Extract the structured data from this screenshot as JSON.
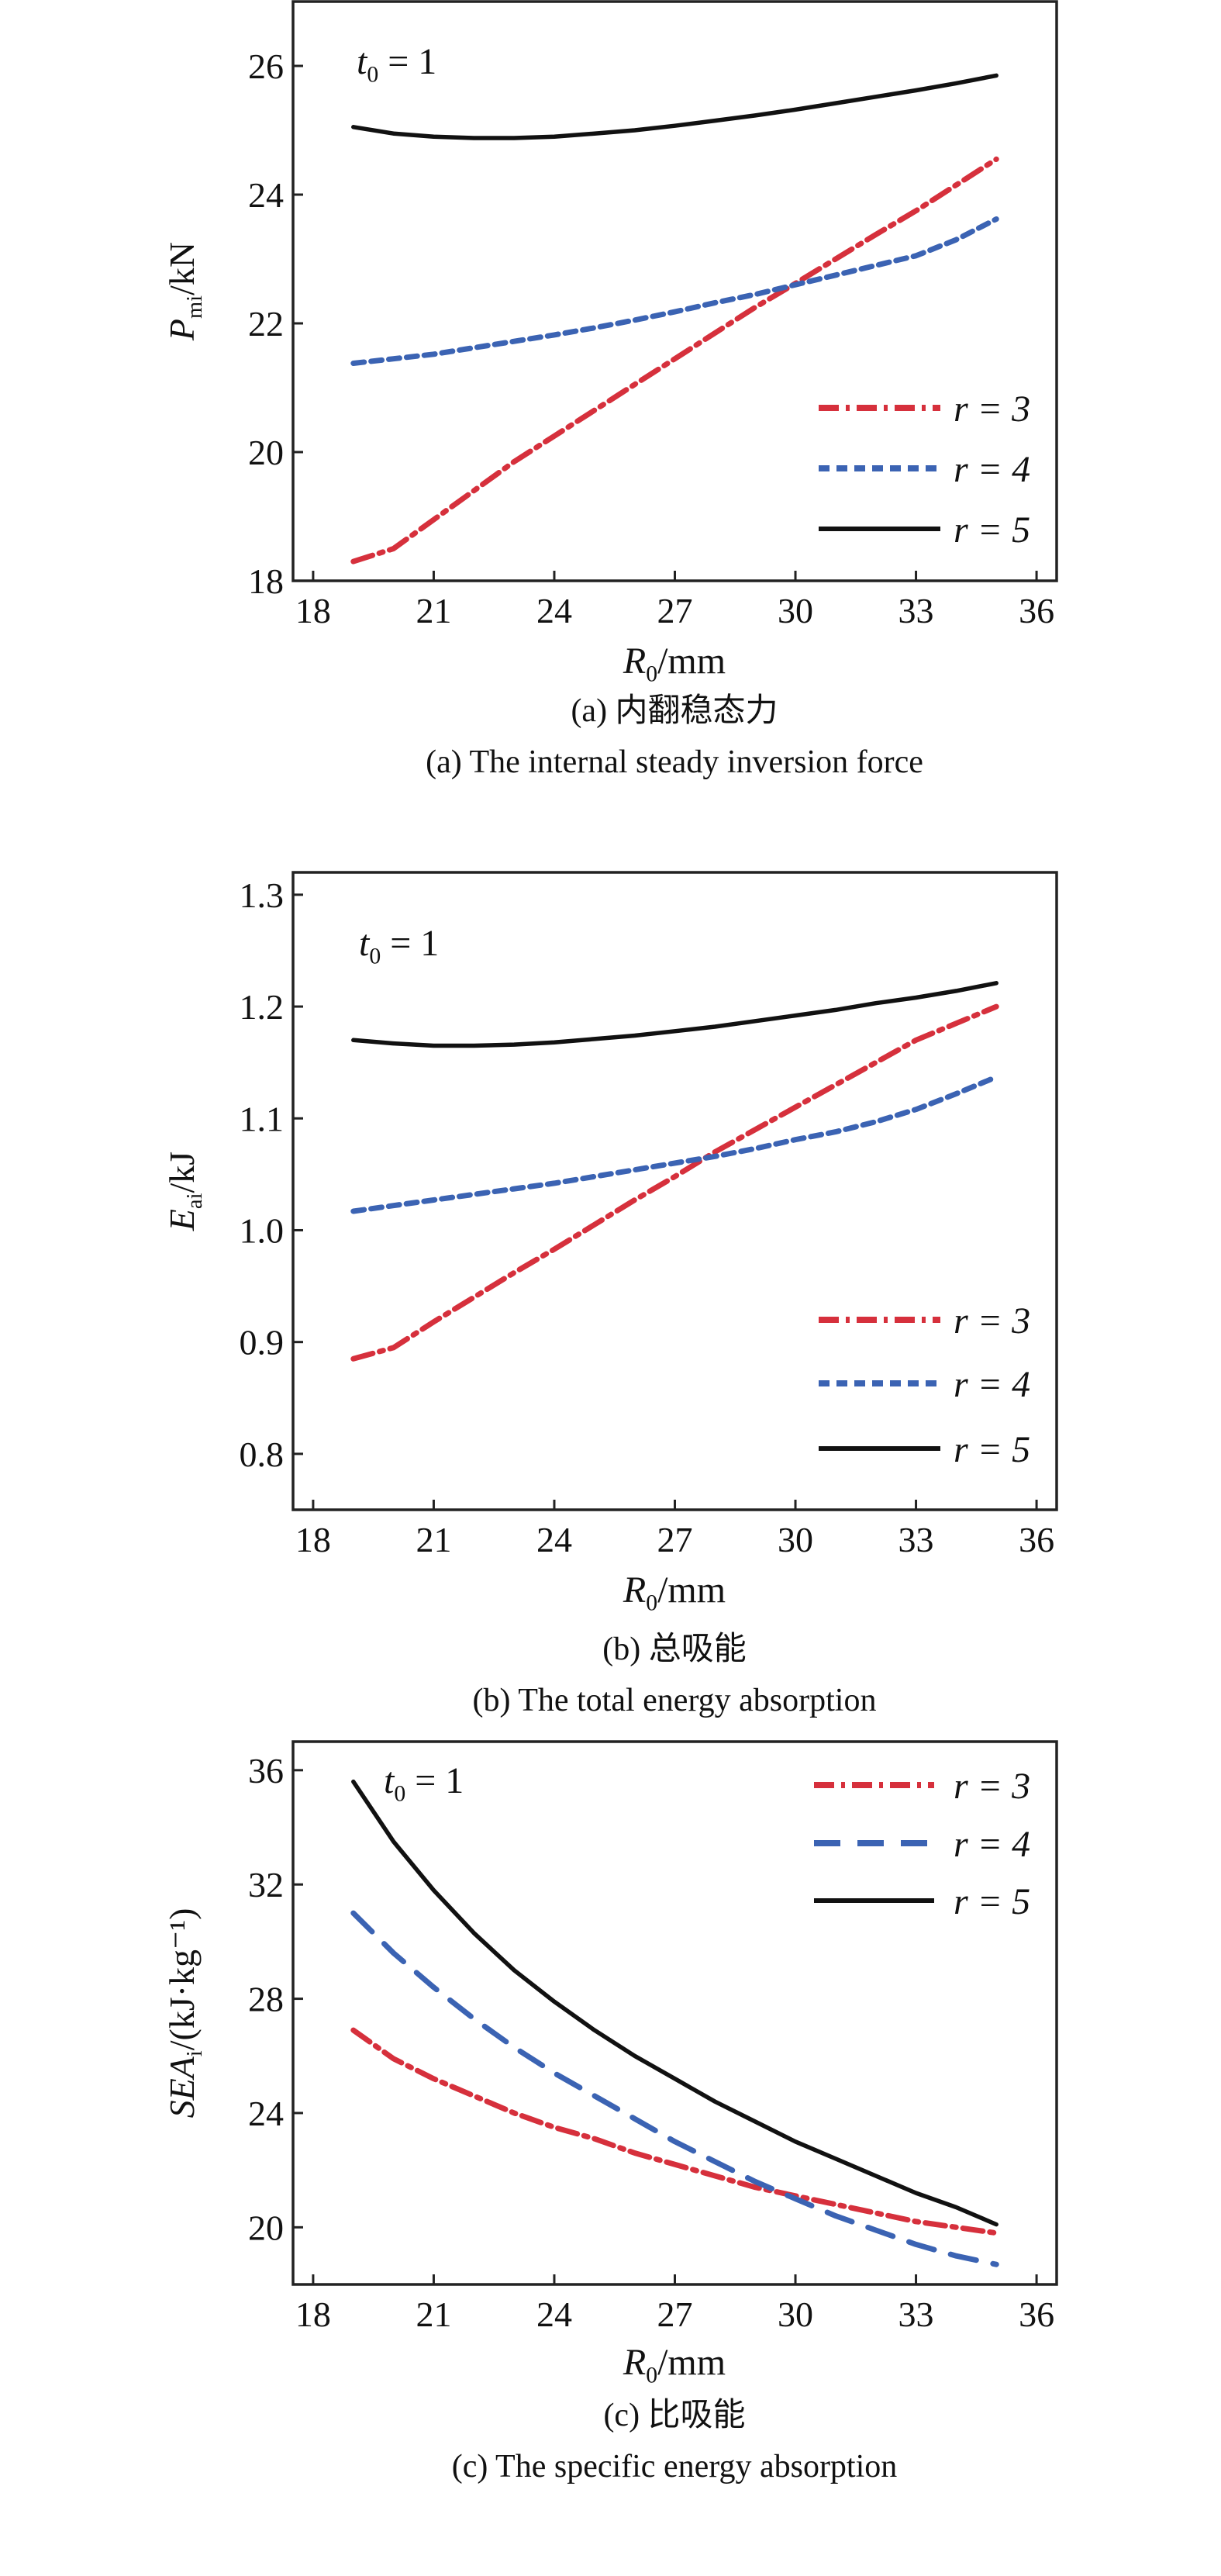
{
  "chart_data": [
    {
      "type": "line",
      "panel": "a",
      "xlabel": {
        "main": "R",
        "sub": "0",
        "suffix": "/mm"
      },
      "ylabel": {
        "main": "P",
        "sub": "mi",
        "suffix": "/kN"
      },
      "annotation": {
        "main": "t",
        "sub": "0",
        "suffix": " = 1"
      },
      "caption_cn": "(a) 内翻稳态力",
      "caption_en": "(a) The internal steady inversion force",
      "xlim": [
        17.5,
        36.5
      ],
      "ylim": [
        18,
        27
      ],
      "xticks": [
        18,
        21,
        24,
        27,
        30,
        33,
        36
      ],
      "yticks": [
        18,
        20,
        22,
        24,
        26
      ],
      "grid": false,
      "legend_position": "bottom-right",
      "x": [
        19,
        20,
        21,
        22,
        23,
        24,
        25,
        26,
        27,
        28,
        29,
        30,
        31,
        32,
        33,
        34,
        35
      ],
      "series": [
        {
          "name": "r = 3",
          "color": "#d6303c",
          "style": "dash-dot",
          "values": [
            18.3,
            18.5,
            18.95,
            19.4,
            19.85,
            20.25,
            20.65,
            21.05,
            21.45,
            21.85,
            22.25,
            22.62,
            23.0,
            23.38,
            23.75,
            24.15,
            24.55
          ]
        },
        {
          "name": "r = 4",
          "color": "#3b63b3",
          "style": "short-dash",
          "values": [
            21.38,
            21.45,
            21.52,
            21.62,
            21.72,
            21.82,
            21.93,
            22.05,
            22.18,
            22.32,
            22.45,
            22.6,
            22.75,
            22.9,
            23.05,
            23.3,
            23.62
          ]
        },
        {
          "name": "r = 5",
          "color": "#111111",
          "style": "solid",
          "values": [
            25.05,
            24.95,
            24.9,
            24.88,
            24.88,
            24.9,
            24.95,
            25.0,
            25.07,
            25.15,
            25.23,
            25.32,
            25.42,
            25.52,
            25.62,
            25.73,
            25.85
          ]
        }
      ]
    },
    {
      "type": "line",
      "panel": "b",
      "xlabel": {
        "main": "R",
        "sub": "0",
        "suffix": "/mm"
      },
      "ylabel": {
        "main": "E",
        "sub": "ai",
        "suffix": "/kJ"
      },
      "annotation": {
        "main": "t",
        "sub": "0",
        "suffix": " = 1"
      },
      "caption_cn": "(b) 总吸能",
      "caption_en": "(b) The total energy absorption",
      "xlim": [
        17.5,
        36.5
      ],
      "ylim": [
        0.75,
        1.32
      ],
      "xticks": [
        18,
        21,
        24,
        27,
        30,
        33,
        36
      ],
      "yticks": [
        "0.8",
        "0.9",
        "1.0",
        "1.1",
        "1.2",
        "1.3"
      ],
      "grid": false,
      "legend_position": "bottom-right",
      "x": [
        19,
        20,
        21,
        22,
        23,
        24,
        25,
        26,
        27,
        28,
        29,
        30,
        31,
        32,
        33,
        34,
        35
      ],
      "series": [
        {
          "name": "r = 3",
          "color": "#d6303c",
          "style": "dash-dot",
          "values": [
            0.885,
            0.895,
            0.918,
            0.94,
            0.962,
            0.983,
            1.005,
            1.027,
            1.048,
            1.07,
            1.09,
            1.11,
            1.13,
            1.15,
            1.17,
            1.185,
            1.2
          ]
        },
        {
          "name": "r = 4",
          "color": "#3b63b3",
          "style": "short-dash",
          "values": [
            1.017,
            1.022,
            1.027,
            1.032,
            1.037,
            1.042,
            1.048,
            1.054,
            1.06,
            1.066,
            1.073,
            1.081,
            1.088,
            1.097,
            1.108,
            1.122,
            1.137
          ]
        },
        {
          "name": "r = 5",
          "color": "#111111",
          "style": "solid",
          "values": [
            1.17,
            1.167,
            1.165,
            1.165,
            1.166,
            1.168,
            1.171,
            1.174,
            1.178,
            1.182,
            1.187,
            1.192,
            1.197,
            1.203,
            1.208,
            1.214,
            1.221
          ]
        }
      ]
    },
    {
      "type": "line",
      "panel": "c",
      "xlabel": {
        "main": "R",
        "sub": "0",
        "suffix": "/mm"
      },
      "ylabel": {
        "main": "SEA",
        "sub": "i",
        "suffix": "/(kJ·kg⁻¹)"
      },
      "annotation": {
        "main": "t",
        "sub": "0",
        "suffix": " = 1"
      },
      "caption_cn": "(c) 比吸能",
      "caption_en": "(c) The specific energy absorption",
      "xlim": [
        17.5,
        36.5
      ],
      "ylim": [
        18,
        37
      ],
      "xticks": [
        18,
        21,
        24,
        27,
        30,
        33,
        36
      ],
      "yticks": [
        20,
        24,
        28,
        32,
        36
      ],
      "grid": false,
      "legend_position": "top-right",
      "x": [
        19,
        20,
        21,
        22,
        23,
        24,
        25,
        26,
        27,
        28,
        29,
        30,
        31,
        32,
        33,
        34,
        35
      ],
      "series": [
        {
          "name": "r = 3",
          "color": "#d6303c",
          "style": "dash-dot",
          "values": [
            26.9,
            25.9,
            25.2,
            24.6,
            24.0,
            23.5,
            23.1,
            22.6,
            22.2,
            21.8,
            21.4,
            21.1,
            20.8,
            20.5,
            20.2,
            20.0,
            19.8
          ]
        },
        {
          "name": "r = 4",
          "color": "#3b63b3",
          "style": "long-dash",
          "values": [
            31.0,
            29.6,
            28.4,
            27.3,
            26.3,
            25.4,
            24.6,
            23.8,
            23.0,
            22.3,
            21.6,
            21.0,
            20.4,
            19.9,
            19.4,
            19.0,
            18.7
          ]
        },
        {
          "name": "r = 5",
          "color": "#111111",
          "style": "solid",
          "values": [
            35.6,
            33.5,
            31.8,
            30.3,
            29.0,
            27.9,
            26.9,
            26.0,
            25.2,
            24.4,
            23.7,
            23.0,
            22.4,
            21.8,
            21.2,
            20.7,
            20.1
          ]
        }
      ]
    }
  ]
}
